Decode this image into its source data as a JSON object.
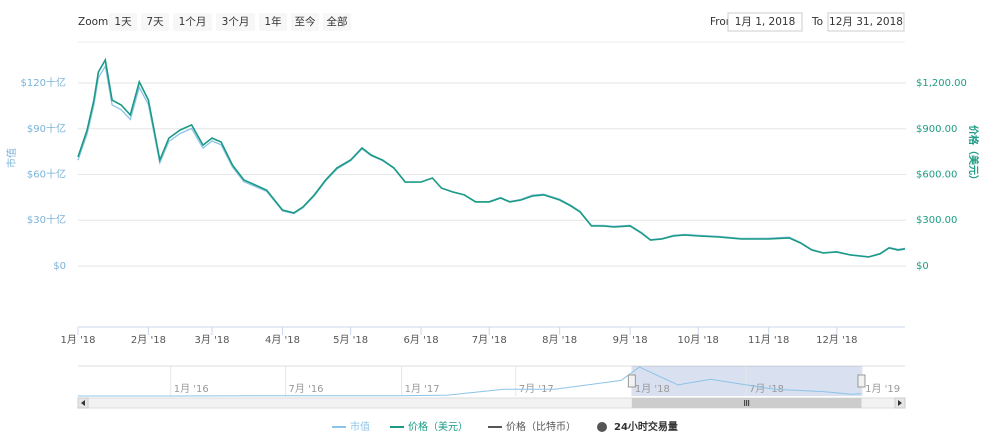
{
  "zoom": {
    "label": "Zoom",
    "buttons": [
      "1天",
      "7天",
      "1个月",
      "3个月",
      "1年",
      "至今",
      "全部"
    ]
  },
  "range": {
    "from_label": "From",
    "from": "1月 1, 2018",
    "to_label": "To",
    "to": "12月 31, 2018"
  },
  "chart_data": {
    "type": "line",
    "ylabel": "市值",
    "y2label": "价格（美元）",
    "x": [
      "2018-01-01",
      "2018-01-05",
      "2018-01-08",
      "2018-01-10",
      "2018-01-13",
      "2018-01-16",
      "2018-01-20",
      "2018-01-24",
      "2018-01-28",
      "2018-02-01",
      "2018-02-06",
      "2018-02-10",
      "2018-02-15",
      "2018-02-20",
      "2018-02-25",
      "2018-03-01",
      "2018-03-05",
      "2018-03-10",
      "2018-03-15",
      "2018-03-20",
      "2018-03-25",
      "2018-04-01",
      "2018-04-06",
      "2018-04-10",
      "2018-04-15",
      "2018-04-20",
      "2018-04-25",
      "2018-05-01",
      "2018-05-06",
      "2018-05-10",
      "2018-05-15",
      "2018-05-20",
      "2018-05-25",
      "2018-06-01",
      "2018-06-06",
      "2018-06-10",
      "2018-06-15",
      "2018-06-20",
      "2018-06-25",
      "2018-07-01",
      "2018-07-06",
      "2018-07-10",
      "2018-07-15",
      "2018-07-20",
      "2018-07-25",
      "2018-08-01",
      "2018-08-06",
      "2018-08-10",
      "2018-08-15",
      "2018-08-20",
      "2018-08-25",
      "2018-09-01",
      "2018-09-06",
      "2018-09-10",
      "2018-09-15",
      "2018-09-20",
      "2018-09-25",
      "2018-10-01",
      "2018-10-10",
      "2018-10-20",
      "2018-11-01",
      "2018-11-10",
      "2018-11-15",
      "2018-11-20",
      "2018-11-25",
      "2018-12-01",
      "2018-12-07",
      "2018-12-15",
      "2018-12-20",
      "2018-12-24",
      "2018-12-28",
      "2018-12-31"
    ],
    "series": [
      {
        "name": "市值",
        "color": "#8cc4e8",
        "axis": "y",
        "values": [
          69.4,
          86.5,
          105.5,
          123.4,
          131.0,
          105.6,
          102.5,
          96.1,
          117.2,
          105.8,
          67.6,
          81.7,
          86.9,
          90.2,
          77.4,
          82.0,
          79.5,
          64.8,
          55.3,
          52.1,
          48.9,
          36.1,
          34.3,
          38.1,
          46.0,
          55.7,
          63.6,
          68.9,
          76.8,
          72.3,
          69.1,
          64.0,
          54.9,
          55.0,
          57.7,
          51.1,
          48.6,
          46.7,
          42.2,
          42.3,
          44.9,
          42.3,
          43.7,
          46.4,
          47.1,
          43.8,
          39.8,
          35.9,
          26.6,
          26.6,
          26.0,
          26.7,
          22.0,
          17.3,
          18.0,
          20.1,
          20.7,
          20.1,
          19.4,
          18.1,
          18.2,
          18.9,
          15.5,
          10.8,
          8.7,
          9.5,
          7.4,
          6.1,
          8.2,
          12.2,
          10.9,
          11.6
        ]
      },
      {
        "name": "价格（美元）",
        "color": "#1a9a84",
        "axis": "y2",
        "values": [
          715,
          892,
          1088,
          1272,
          1351,
          1088,
          1056,
          990,
          1207,
          1088,
          695,
          839,
          892,
          925,
          793,
          839,
          813,
          662,
          564,
          531,
          498,
          367,
          348,
          387,
          466,
          564,
          643,
          695,
          774,
          728,
          695,
          643,
          551,
          551,
          577,
          511,
          485,
          466,
          420,
          420,
          446,
          420,
          433,
          459,
          466,
          433,
          393,
          354,
          262,
          262,
          256,
          262,
          216,
          170,
          177,
          197,
          203,
          197,
          190,
          177,
          177,
          184,
          151,
          105,
          85,
          92,
          72,
          59,
          79,
          118,
          105,
          112
        ]
      }
    ],
    "legend_extra": [
      {
        "name": "价格（比特币）",
        "color": "#555555"
      },
      {
        "name": "24小时交易量",
        "color": "#555555"
      }
    ],
    "xlim": [
      "2018-01-01",
      "2018-12-31"
    ],
    "xticks": [
      {
        "value": "2018-01-01",
        "label": "1月 '18"
      },
      {
        "value": "2018-02-01",
        "label": "2月 '18"
      },
      {
        "value": "2018-03-01",
        "label": "3月 '18"
      },
      {
        "value": "2018-04-01",
        "label": "4月 '18"
      },
      {
        "value": "2018-05-01",
        "label": "5月 '18"
      },
      {
        "value": "2018-06-01",
        "label": "6月 '18"
      },
      {
        "value": "2018-07-01",
        "label": "7月 '18"
      },
      {
        "value": "2018-08-01",
        "label": "8月 '18"
      },
      {
        "value": "2018-09-01",
        "label": "9月 '18"
      },
      {
        "value": "2018-10-01",
        "label": "10月 '18"
      },
      {
        "value": "2018-11-01",
        "label": "11月 '18"
      },
      {
        "value": "2018-12-01",
        "label": "12月 '18"
      }
    ],
    "ylim": [
      -38.7,
      146.9
    ],
    "yticks": [
      {
        "value": 0,
        "label": "$0"
      },
      {
        "value": 30,
        "label": "$30十亿"
      },
      {
        "value": 60,
        "label": "$60十亿"
      },
      {
        "value": 90,
        "label": "$90十亿"
      },
      {
        "value": 120,
        "label": "$120十亿"
      }
    ],
    "y2lim": [
      -387,
      1469
    ],
    "y2ticks": [
      {
        "value": 0,
        "label": "$0"
      },
      {
        "value": 300,
        "label": "$300.00"
      },
      {
        "value": 600,
        "label": "$600.00"
      },
      {
        "value": 900,
        "label": "$900.00"
      },
      {
        "value": 1200,
        "label": "$1,200.00"
      }
    ],
    "grid": true,
    "navigator": {
      "x": [
        "2015-08-07",
        "2016-01-01",
        "2016-06-15",
        "2017-01-01",
        "2017-03-15",
        "2017-06-12",
        "2017-09-01",
        "2017-12-15",
        "2018-01-13",
        "2018-03-15",
        "2018-05-06",
        "2018-08-15",
        "2018-11-01",
        "2018-12-15",
        "2018-12-31"
      ],
      "values": [
        0,
        0.1,
        1.5,
        0.8,
        4,
        30,
        30,
        70,
        130,
        50,
        75,
        30,
        20,
        8,
        11
      ],
      "color": "#8cc4e8",
      "xlim": [
        "2015-08-07",
        "2019-03-10"
      ],
      "ylim": [
        0,
        135
      ],
      "xticks": [
        {
          "value": "2016-01-01",
          "label": "1月 '16"
        },
        {
          "value": "2016-07-01",
          "label": "7月 '16"
        },
        {
          "value": "2017-01-01",
          "label": "1月 '17"
        },
        {
          "value": "2017-07-01",
          "label": "7月 '17"
        },
        {
          "value": "2018-01-01",
          "label": "1月 '18"
        },
        {
          "value": "2018-07-01",
          "label": "7月 '18"
        },
        {
          "value": "2019-01-01",
          "label": "1月 '19"
        }
      ]
    }
  }
}
